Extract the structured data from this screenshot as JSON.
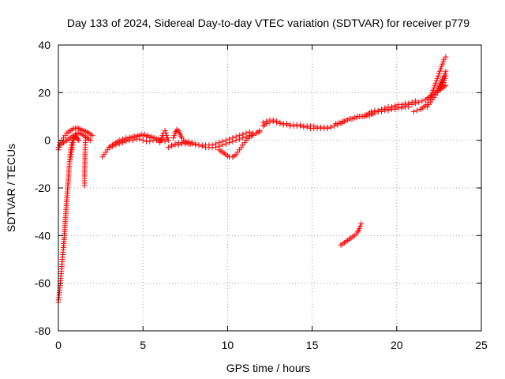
{
  "chart_data": {
    "type": "scatter",
    "title": "Day 133 of 2024, Sidereal Day-to-day VTEC variation (SDTVAR) for receiver p779",
    "xlabel": "GPS time / hours",
    "ylabel": "SDTVAR / TECUs",
    "xlim": [
      0,
      25
    ],
    "ylim": [
      -80,
      40
    ],
    "xticks": [
      0,
      5,
      10,
      15,
      20,
      25
    ],
    "yticks": [
      -80,
      -60,
      -40,
      -20,
      0,
      20,
      40
    ],
    "xtick_labels": [
      "0",
      "5",
      "10",
      "15",
      "20",
      "25"
    ],
    "ytick_labels": [
      "-80",
      "-60",
      "-40",
      "-20",
      "0",
      "20",
      "40"
    ],
    "grid": true,
    "marker": "+",
    "color": "#ff0000",
    "segments": [
      {
        "x": [
          0.0,
          0.05,
          0.1,
          0.15,
          0.2,
          0.25,
          0.3,
          0.35,
          0.4,
          0.45,
          0.5,
          0.55,
          0.6,
          0.65,
          0.7,
          0.75,
          0.8,
          0.85,
          0.9
        ],
        "y": [
          -68,
          -65,
          -61,
          -57,
          -53,
          -49,
          -45,
          -40,
          -35,
          -30,
          -25,
          -20,
          -15,
          -10,
          -6,
          -3,
          -1,
          0,
          1
        ]
      },
      {
        "x": [
          0.0,
          0.1,
          0.2,
          0.3,
          0.4,
          0.5,
          0.6,
          0.7,
          0.8,
          0.9,
          1.0,
          1.1,
          1.2,
          1.3,
          1.4,
          1.5,
          1.6,
          1.7,
          1.8,
          1.9,
          2.0
        ],
        "y": [
          -4,
          -1,
          0,
          1,
          2,
          3,
          3.5,
          4,
          4.5,
          5,
          5,
          5.2,
          5,
          4.6,
          4.2,
          4,
          3.8,
          3.4,
          3,
          2.5,
          2
        ]
      },
      {
        "x": [
          0.0,
          0.1,
          0.2,
          0.3,
          0.4,
          0.5,
          0.6,
          0.7,
          0.8,
          0.9,
          1.0,
          1.1,
          1.2,
          1.3,
          1.4,
          1.5,
          1.6,
          1.7,
          1.8,
          1.9
        ],
        "y": [
          -3,
          -2,
          -1.5,
          -1,
          -0.5,
          0,
          0.5,
          1,
          1.5,
          2,
          2.5,
          3,
          3,
          2.8,
          2.5,
          2,
          1.5,
          1,
          0.5,
          0
        ]
      },
      {
        "x": [
          0.7,
          0.75,
          0.8,
          0.85,
          0.9,
          0.95,
          1.0,
          1.05,
          1.1,
          1.15,
          1.2
        ],
        "y": [
          -8,
          -6,
          -4,
          -2,
          0,
          1,
          1.5,
          1.5,
          1,
          0.5,
          0
        ]
      },
      {
        "x": [
          1.55,
          1.55,
          1.57,
          1.58,
          1.6,
          1.62
        ],
        "y": [
          -19,
          -15,
          -10,
          -5,
          -1,
          1
        ]
      },
      {
        "x": [
          2.6,
          2.7,
          2.8,
          2.9,
          3.0,
          3.2,
          3.4,
          3.6,
          3.8,
          4.0,
          4.2,
          4.4,
          4.6,
          4.8,
          5.0,
          5.2,
          5.4,
          5.6,
          5.8,
          6.0,
          6.2,
          6.4
        ],
        "y": [
          -7,
          -6,
          -5,
          -4,
          -3,
          -2,
          -1,
          0,
          0.5,
          1,
          1.2,
          1.5,
          1.5,
          1.8,
          2,
          1.5,
          1.2,
          1,
          0.5,
          0,
          0.5,
          1
        ]
      },
      {
        "x": [
          3.0,
          3.2,
          3.4,
          3.6,
          3.8,
          4.0,
          4.2,
          4.4,
          4.6,
          4.8,
          5.0,
          5.2,
          5.4,
          5.6,
          5.8,
          6.0
        ],
        "y": [
          -3,
          -2.5,
          -2,
          -1.5,
          -1,
          -0.5,
          0,
          0,
          0.5,
          0.5,
          0,
          -0.5,
          -0.5,
          0,
          0,
          -0.5
        ]
      },
      {
        "x": [
          3.5,
          3.7,
          3.9,
          4.1,
          4.3,
          4.5,
          4.7,
          4.9,
          5.1,
          5.3,
          5.5,
          5.7,
          5.9,
          6.1,
          6.3
        ],
        "y": [
          -1,
          -0.5,
          0,
          0.5,
          1,
          1.5,
          2,
          2.5,
          2.5,
          2,
          1.5,
          1,
          0.5,
          0,
          -0.5
        ]
      },
      {
        "x": [
          6.0,
          6.1,
          6.2,
          6.3,
          6.4,
          6.5
        ],
        "y": [
          -1,
          1,
          3,
          4,
          2,
          0
        ]
      },
      {
        "x": [
          6.5,
          6.7,
          6.9,
          7.1,
          7.3,
          7.5,
          7.7,
          7.9,
          8.1,
          8.3,
          8.5,
          8.7,
          8.9,
          9.1,
          9.3,
          9.5,
          9.7,
          9.9,
          10.1,
          10.3,
          10.5,
          10.7,
          10.9,
          11.1,
          11.3,
          11.5,
          11.7,
          11.9
        ],
        "y": [
          -3,
          -2.5,
          -2,
          -2,
          -1.5,
          -1.5,
          -1.5,
          -1.5,
          -2,
          -2,
          -2,
          -2,
          -2,
          -2,
          -1.5,
          -1,
          -0.5,
          0,
          0.5,
          1,
          1.5,
          2,
          2.5,
          3,
          3.5,
          3,
          3,
          4
        ]
      },
      {
        "x": [
          6.7,
          6.9,
          7.1,
          7.3,
          7.5,
          7.7,
          7.9,
          8.1,
          8.3,
          8.5,
          8.7,
          8.9,
          9.1,
          9.3,
          9.5,
          9.7,
          9.9,
          10.1,
          10.3,
          10.5,
          10.7,
          10.9,
          11.1,
          11.3,
          11.5
        ],
        "y": [
          -2,
          -1.5,
          -1,
          -1,
          -1,
          -0.5,
          -1,
          -1.5,
          -2,
          -2.5,
          -3,
          -3,
          -3,
          -3,
          -2.5,
          -2,
          -1.5,
          -1,
          -0.5,
          0,
          0.5,
          1,
          1.5,
          2,
          2
        ]
      },
      {
        "x": [
          6.8,
          6.9,
          7.0,
          7.1,
          7.2,
          7.3,
          7.4,
          7.5,
          7.6,
          7.7,
          7.8
        ],
        "y": [
          1,
          3,
          4.5,
          4,
          2.5,
          1,
          0,
          -0.5,
          -1,
          -1.5,
          -1.5
        ]
      },
      {
        "x": [
          9.5,
          9.7,
          9.9,
          10.1,
          10.3,
          10.5,
          10.7,
          10.9,
          11.1,
          11.3,
          11.5,
          11.7,
          11.9
        ],
        "y": [
          -4,
          -5,
          -6,
          -7,
          -7,
          -6,
          -4,
          -2,
          0,
          1.5,
          2.5,
          3,
          3.5
        ]
      },
      {
        "x": [
          12.1,
          12.3,
          12.5,
          12.7,
          12.9,
          13.1,
          13.3,
          13.5,
          13.7,
          13.9,
          14.1,
          14.3,
          14.5,
          14.7,
          14.9,
          15.1,
          15.3,
          15.5,
          15.7,
          15.9,
          16.1
        ],
        "y": [
          6,
          7,
          7.5,
          8,
          7.5,
          7,
          6.5,
          6.5,
          6,
          6,
          6,
          6,
          5.5,
          5.5,
          5,
          5,
          5,
          5,
          5,
          5,
          5.5
        ]
      },
      {
        "x": [
          12.1,
          12.3,
          12.5,
          12.7,
          12.9,
          13.1,
          13.3,
          13.5,
          13.7,
          13.9,
          14.1,
          14.3,
          14.5,
          14.7,
          14.9,
          15.1,
          15.3,
          15.5,
          15.7,
          15.9
        ],
        "y": [
          7.5,
          8,
          8.5,
          8.5,
          8,
          7.5,
          7,
          7,
          6.5,
          6.5,
          6.5,
          6.5,
          6,
          6,
          6,
          6,
          5.5,
          5.5,
          5.5,
          5.5
        ]
      },
      {
        "x": [
          15.9,
          16.1,
          16.3,
          16.5,
          16.7,
          16.9,
          17.1,
          17.3,
          17.5,
          17.7,
          17.9,
          18.1,
          18.3,
          18.5
        ],
        "y": [
          5,
          5.5,
          6,
          6.5,
          7,
          8,
          8.5,
          9,
          9.5,
          10,
          10,
          10.5,
          10.5,
          11
        ]
      },
      {
        "x": [
          16.4,
          16.6,
          16.8,
          17.0,
          17.2,
          17.4,
          17.6,
          17.8,
          18.0,
          18.2,
          18.4,
          18.6
        ],
        "y": [
          7,
          7.5,
          8,
          8.5,
          9,
          9,
          9.5,
          10,
          10,
          10.5,
          10.5,
          11
        ]
      },
      {
        "x": [
          16.7,
          16.9,
          17.1,
          17.3,
          17.5,
          17.7,
          17.8,
          17.9
        ],
        "y": [
          -44,
          -43,
          -42,
          -41,
          -40,
          -38.5,
          -37,
          -35
        ]
      },
      {
        "x": [
          18.1,
          18.3,
          18.5,
          18.7,
          18.9,
          19.1,
          19.3,
          19.5,
          19.7,
          19.9,
          20.1,
          20.3,
          20.5,
          20.7,
          20.9,
          21.1,
          21.3,
          21.5,
          21.7,
          21.9,
          22.1,
          22.3,
          22.5,
          22.7,
          22.9
        ],
        "y": [
          10,
          11,
          12,
          12.5,
          12,
          12.5,
          13,
          13,
          13.5,
          14,
          14,
          14,
          14.5,
          15,
          15,
          15.5,
          16,
          16.5,
          17,
          18,
          19,
          20,
          21,
          22,
          23
        ]
      },
      {
        "x": [
          18.3,
          18.5,
          18.7,
          18.9,
          19.1,
          19.3,
          19.5,
          19.7,
          19.9,
          20.1,
          20.3,
          20.5,
          20.7
        ],
        "y": [
          11,
          11.5,
          11.5,
          12,
          12,
          12.5,
          12.5,
          13,
          13,
          13.5,
          13.5,
          14,
          14
        ]
      },
      {
        "x": [
          18.7,
          18.9,
          19.1,
          19.3,
          19.5,
          19.7,
          19.9,
          20.1,
          20.3,
          20.5,
          20.7,
          20.9,
          21.1
        ],
        "y": [
          12,
          12.5,
          13,
          13.5,
          14,
          14,
          14.5,
          15,
          15,
          15.5,
          15.5,
          16,
          16.5
        ]
      },
      {
        "x": [
          21.0,
          21.2,
          21.4,
          21.6,
          21.8,
          22.0,
          22.2,
          22.4,
          22.6,
          22.8,
          22.9
        ],
        "y": [
          12,
          12.5,
          13,
          14,
          15,
          17,
          19,
          21,
          24,
          27,
          29
        ]
      },
      {
        "x": [
          22.0,
          22.1,
          22.2,
          22.3,
          22.4,
          22.5,
          22.6,
          22.7,
          22.8,
          22.9
        ],
        "y": [
          18,
          20,
          22,
          24,
          26,
          28,
          30,
          32,
          34,
          35
        ]
      },
      {
        "x": [
          21.8,
          22.0,
          22.2,
          22.4,
          22.6,
          22.8,
          22.9
        ],
        "y": [
          14,
          16,
          18,
          20,
          22,
          25,
          27
        ]
      }
    ]
  }
}
